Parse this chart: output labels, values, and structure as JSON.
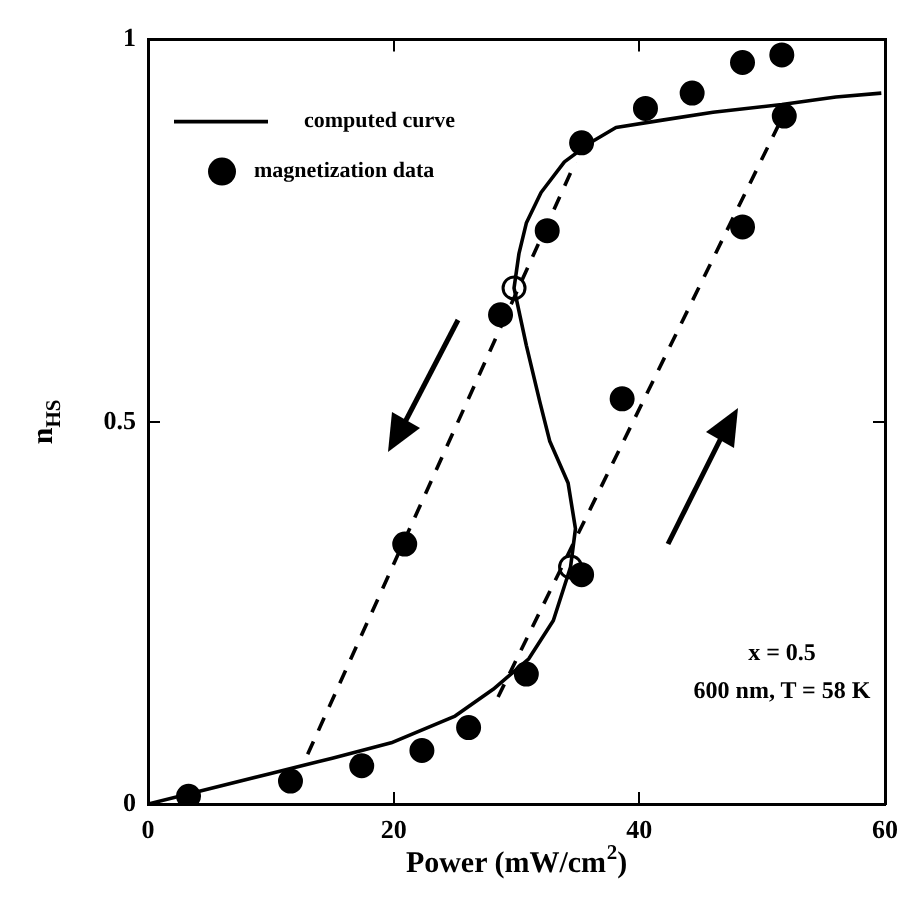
{
  "chart_data": {
    "type": "line",
    "xlabel": "Power (mW/cm$^{2}$)",
    "ylabel": "n$_{HS}$",
    "xlim": [
      0,
      60
    ],
    "ylim": [
      0,
      1
    ],
    "xticks": [
      0,
      20,
      40,
      60
    ],
    "yticks": [
      0,
      0.5,
      1
    ],
    "grid": false,
    "legend": "top left",
    "annotations": [
      "x = 0.5",
      "600 nm, T = 58 K"
    ],
    "series": [
      {
        "name": "computed curve",
        "color": "#000000",
        "line_style": "solid",
        "marker": "none",
        "x": [
          0,
          5,
          10,
          15,
          19.8,
          25,
          28.1,
          31,
          33,
          34.4,
          34.8,
          34.2,
          32.7,
          31.9,
          30.8,
          29.8,
          30.2,
          30.8,
          32,
          33.9,
          36,
          38.1,
          42,
          46,
          51.6,
          56,
          59.7
        ],
        "values": [
          0,
          0.02,
          0.04,
          0.06,
          0.08,
          0.115,
          0.15,
          0.19,
          0.24,
          0.31,
          0.36,
          0.42,
          0.475,
          0.526,
          0.6,
          0.675,
          0.72,
          0.76,
          0.8,
          0.84,
          0.865,
          0.885,
          0.895,
          0.905,
          0.915,
          0.925,
          0.93
        ]
      },
      {
        "name": "magnetization data",
        "type": "scatter",
        "color": "#000000",
        "marker": "circle",
        "x": [
          3.3,
          11.6,
          17.4,
          22.3,
          26.1,
          30.8,
          35.3,
          20.9,
          28.7,
          32.5,
          35.3,
          40.5,
          44.3,
          48.4,
          51.6,
          51.8,
          48.4,
          38.6
        ],
        "values": [
          0.01,
          0.03,
          0.05,
          0.07,
          0.1,
          0.17,
          0.3,
          0.34,
          0.64,
          0.75,
          0.865,
          0.91,
          0.93,
          0.97,
          0.98,
          0.9,
          0.755,
          0.53
        ]
      },
      {
        "type": "line",
        "color": "#000000",
        "line_style": "dashed",
        "marker": "none",
        "x": [
          13,
          34.8
        ],
        "values": [
          0.065,
          0.84
        ]
      },
      {
        "type": "line",
        "color": "#000000",
        "line_style": "dashed",
        "marker": "none",
        "x": [
          28.5,
          52
        ],
        "values": [
          0.14,
          0.91
        ]
      },
      {
        "type": "scatter",
        "color": "#000000",
        "marker": "circle",
        "x": [
          29.8,
          34.4
        ],
        "values": [
          0.675,
          0.31
        ]
      }
    ]
  }
}
